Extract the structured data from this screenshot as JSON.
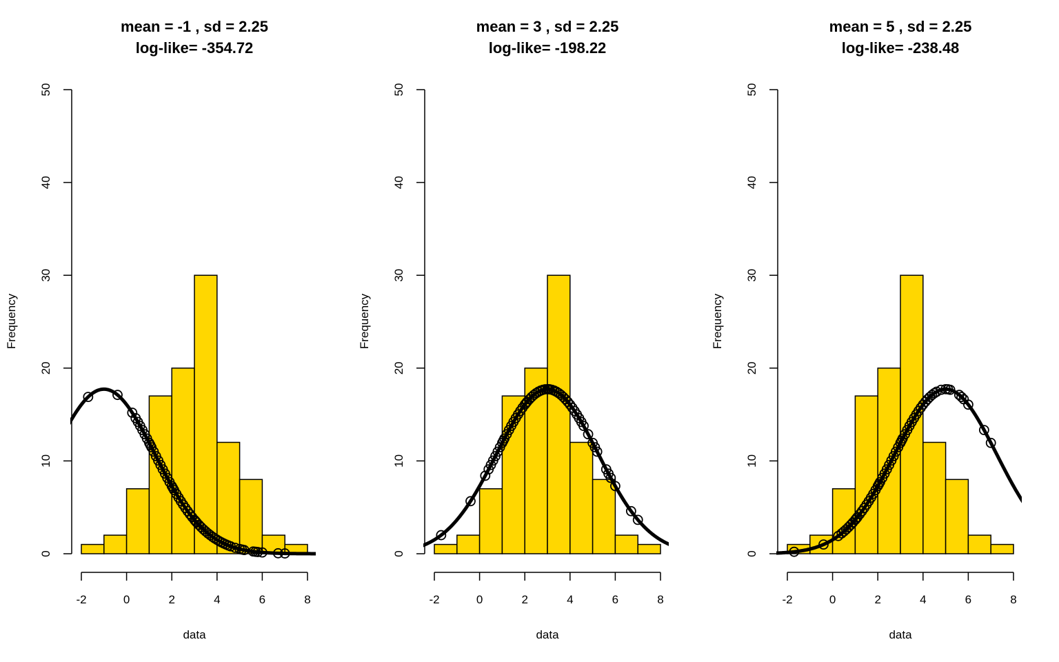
{
  "chart_data": [
    {
      "type": "bar",
      "title_line1": "mean =  -1 , sd = 2.25",
      "title_line2": "log-like= -354.72",
      "xlabel": "data",
      "ylabel": "Frequency",
      "xlim": [
        -2,
        8
      ],
      "ylim": [
        0,
        50
      ],
      "x_ticks": [
        "-2",
        "0",
        "2",
        "4",
        "6",
        "8"
      ],
      "y_ticks": [
        "0",
        "10",
        "20",
        "30",
        "40",
        "50"
      ],
      "bins": [
        [
          -2,
          -1
        ],
        [
          -1,
          0
        ],
        [
          0,
          1
        ],
        [
          1,
          2
        ],
        [
          2,
          3
        ],
        [
          3,
          4
        ],
        [
          4,
          5
        ],
        [
          5,
          6
        ],
        [
          6,
          7
        ],
        [
          7,
          8
        ]
      ],
      "values": [
        1,
        2,
        7,
        17,
        20,
        30,
        12,
        8,
        2,
        1
      ],
      "bar_color": "#FFD700",
      "curve": {
        "mean": -1,
        "sd": 2.25,
        "n": 100,
        "bin_width": 1
      }
    },
    {
      "type": "bar",
      "title_line1": "mean =  3 , sd = 2.25",
      "title_line2": "log-like= -198.22",
      "xlabel": "data",
      "ylabel": "Frequency",
      "xlim": [
        -2,
        8
      ],
      "ylim": [
        0,
        50
      ],
      "x_ticks": [
        "-2",
        "0",
        "2",
        "4",
        "6",
        "8"
      ],
      "y_ticks": [
        "0",
        "10",
        "20",
        "30",
        "40",
        "50"
      ],
      "bins": [
        [
          -2,
          -1
        ],
        [
          -1,
          0
        ],
        [
          0,
          1
        ],
        [
          1,
          2
        ],
        [
          2,
          3
        ],
        [
          3,
          4
        ],
        [
          4,
          5
        ],
        [
          5,
          6
        ],
        [
          6,
          7
        ],
        [
          7,
          8
        ]
      ],
      "values": [
        1,
        2,
        7,
        17,
        20,
        30,
        12,
        8,
        2,
        1
      ],
      "bar_color": "#FFD700",
      "curve": {
        "mean": 3,
        "sd": 2.25,
        "n": 100,
        "bin_width": 1
      }
    },
    {
      "type": "bar",
      "title_line1": "mean =  5 , sd = 2.25",
      "title_line2": "log-like= -238.48",
      "xlabel": "data",
      "ylabel": "Frequency",
      "xlim": [
        -2,
        8
      ],
      "ylim": [
        0,
        50
      ],
      "x_ticks": [
        "-2",
        "0",
        "2",
        "4",
        "6",
        "8"
      ],
      "y_ticks": [
        "0",
        "10",
        "20",
        "30",
        "40",
        "50"
      ],
      "bins": [
        [
          -2,
          -1
        ],
        [
          -1,
          0
        ],
        [
          0,
          1
        ],
        [
          1,
          2
        ],
        [
          2,
          3
        ],
        [
          3,
          4
        ],
        [
          4,
          5
        ],
        [
          5,
          6
        ],
        [
          6,
          7
        ],
        [
          7,
          8
        ]
      ],
      "values": [
        1,
        2,
        7,
        17,
        20,
        30,
        12,
        8,
        2,
        1
      ],
      "bar_color": "#FFD700",
      "curve": {
        "mean": 5,
        "sd": 2.25,
        "n": 100,
        "bin_width": 1
      }
    }
  ],
  "data_points_x": [
    -1.7,
    -0.4,
    0.25,
    0.4,
    0.5,
    0.6,
    0.7,
    0.8,
    0.9,
    1.0,
    1.05,
    1.1,
    1.2,
    1.3,
    1.4,
    1.5,
    1.6,
    1.7,
    1.8,
    1.9,
    2.0,
    2.05,
    2.1,
    2.2,
    2.3,
    2.4,
    2.5,
    2.6,
    2.7,
    2.8,
    2.9,
    3.0,
    3.05,
    3.1,
    3.2,
    3.3,
    3.4,
    3.5,
    3.6,
    3.7,
    3.8,
    3.9,
    4.0,
    4.1,
    4.2,
    4.3,
    4.4,
    4.5,
    4.6,
    4.8,
    5.0,
    5.1,
    5.2,
    5.6,
    5.7,
    5.8,
    6.0,
    6.7,
    7.0
  ]
}
